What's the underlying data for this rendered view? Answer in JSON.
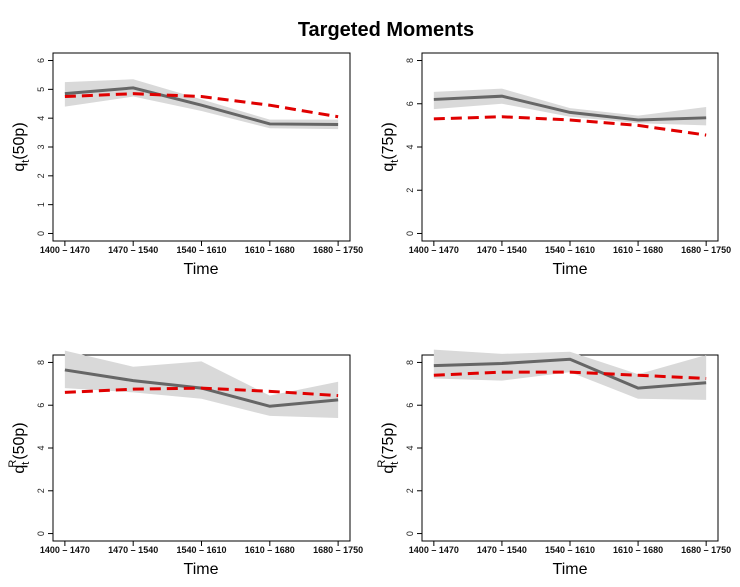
{
  "title": "Targeted Moments",
  "colors": {
    "model": "#e00000",
    "data": "#666666",
    "band": "#d9d9d9"
  },
  "chart_data": [
    {
      "type": "line",
      "categories": [
        "1400 – 1470",
        "1470 – 1540",
        "1540 – 1610",
        "1610 – 1680",
        "1680 – 1750"
      ],
      "xlabel": "Time",
      "ylabel_main": "q",
      "ylabel_sub": "t",
      "ylabel_sup": "",
      "ylabel_tail": "(50p)",
      "ylim": [
        0,
        6
      ],
      "yticks": [
        0,
        1,
        2,
        3,
        4,
        5,
        6
      ],
      "series": [
        {
          "values": [
            4.85,
            5.05,
            4.45,
            3.8,
            3.78
          ],
          "lower": [
            4.4,
            4.75,
            4.25,
            3.65,
            3.62
          ],
          "upper": [
            5.25,
            5.35,
            4.65,
            3.95,
            3.95
          ],
          "style": "solid"
        },
        {
          "values": [
            4.75,
            4.85,
            4.75,
            4.45,
            4.05
          ],
          "style": "dashed"
        }
      ]
    },
    {
      "type": "line",
      "categories": [
        "1400 – 1470",
        "1470 – 1540",
        "1540 – 1610",
        "1610 – 1680",
        "1680 – 1750"
      ],
      "xlabel": "Time",
      "ylabel_main": "q",
      "ylabel_sub": "t",
      "ylabel_sup": "",
      "ylabel_tail": "(75p)",
      "ylim": [
        0,
        8
      ],
      "yticks": [
        0,
        2,
        4,
        6,
        8
      ],
      "series": [
        {
          "values": [
            6.2,
            6.35,
            5.6,
            5.25,
            5.35
          ],
          "lower": [
            5.75,
            6.0,
            5.4,
            5.1,
            5.0
          ],
          "upper": [
            6.55,
            6.7,
            5.8,
            5.45,
            5.85
          ],
          "style": "solid"
        },
        {
          "values": [
            5.3,
            5.4,
            5.25,
            5.0,
            4.55
          ],
          "style": "dashed"
        }
      ]
    },
    {
      "type": "line",
      "categories": [
        "1400 – 1470",
        "1470 – 1540",
        "1540 – 1610",
        "1610 – 1680",
        "1680 – 1750"
      ],
      "xlabel": "Time",
      "ylabel_main": "q",
      "ylabel_sub": "t",
      "ylabel_sup": "R",
      "ylabel_tail": "(50p)",
      "ylim": [
        0,
        8
      ],
      "yticks": [
        0,
        2,
        4,
        6,
        8
      ],
      "series": [
        {
          "values": [
            7.65,
            7.15,
            6.8,
            5.95,
            6.25
          ],
          "lower": [
            6.8,
            6.6,
            6.3,
            5.5,
            5.4
          ],
          "upper": [
            8.55,
            7.8,
            8.05,
            6.45,
            7.1
          ],
          "style": "solid"
        },
        {
          "values": [
            6.6,
            6.75,
            6.8,
            6.65,
            6.45
          ],
          "style": "dashed"
        }
      ]
    },
    {
      "type": "line",
      "categories": [
        "1400 – 1470",
        "1470 – 1540",
        "1540 – 1610",
        "1610 – 1680",
        "1680 – 1750"
      ],
      "xlabel": "Time",
      "ylabel_main": "q",
      "ylabel_sub": "t",
      "ylabel_sup": "R",
      "ylabel_tail": "(75p)",
      "ylim": [
        0,
        8
      ],
      "yticks": [
        0,
        2,
        4,
        6,
        8
      ],
      "series": [
        {
          "values": [
            7.85,
            7.95,
            8.15,
            6.8,
            7.05
          ],
          "lower": [
            7.25,
            7.15,
            7.55,
            6.3,
            6.25
          ],
          "upper": [
            8.6,
            8.4,
            8.5,
            7.45,
            8.35
          ],
          "style": "solid"
        },
        {
          "values": [
            7.4,
            7.55,
            7.55,
            7.4,
            7.25
          ],
          "style": "dashed"
        }
      ]
    }
  ]
}
